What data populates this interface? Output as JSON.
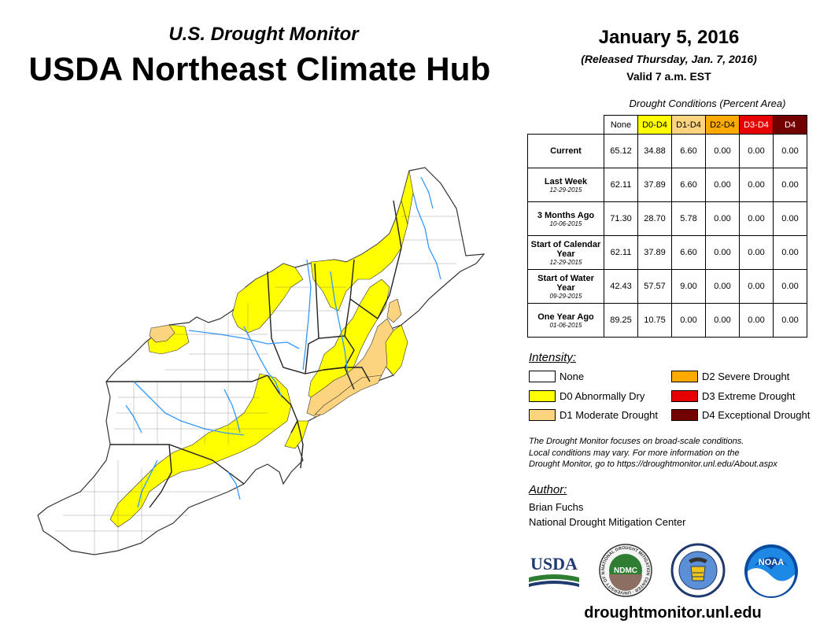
{
  "header": {
    "subtitle": "U.S. Drought Monitor",
    "title": "USDA Northeast Climate Hub"
  },
  "release": {
    "date": "January 5, 2016",
    "released": "(Released Thursday, Jan. 7, 2016)",
    "valid": "Valid 7 a.m. EST"
  },
  "conditions_table": {
    "caption": "Drought Conditions (Percent Area)",
    "columns": [
      "None",
      "D0-D4",
      "D1-D4",
      "D2-D4",
      "D3-D4",
      "D4"
    ],
    "column_colors": [
      "#ffffff",
      "#ffff00",
      "#fcd37f",
      "#ffaa00",
      "#e60000",
      "#730000"
    ],
    "column_text_colors": [
      "#000000",
      "#000000",
      "#000000",
      "#000000",
      "#ffffff",
      "#ffffff"
    ],
    "rows": [
      {
        "label": "Current",
        "date": "",
        "values": [
          "65.12",
          "34.88",
          "6.60",
          "0.00",
          "0.00",
          "0.00"
        ]
      },
      {
        "label": "Last Week",
        "date": "12-29-2015",
        "values": [
          "62.11",
          "37.89",
          "6.60",
          "0.00",
          "0.00",
          "0.00"
        ]
      },
      {
        "label": "3 Months Ago",
        "date": "10-06-2015",
        "values": [
          "71.30",
          "28.70",
          "5.78",
          "0.00",
          "0.00",
          "0.00"
        ]
      },
      {
        "label": "Start of Calendar Year",
        "date": "12-29-2015",
        "values": [
          "62.11",
          "37.89",
          "6.60",
          "0.00",
          "0.00",
          "0.00"
        ]
      },
      {
        "label": "Start of Water Year",
        "date": "09-29-2015",
        "values": [
          "42.43",
          "57.57",
          "9.00",
          "0.00",
          "0.00",
          "0.00"
        ]
      },
      {
        "label": "One Year Ago",
        "date": "01-06-2015",
        "values": [
          "89.25",
          "10.75",
          "0.00",
          "0.00",
          "0.00",
          "0.00"
        ]
      }
    ]
  },
  "legend": {
    "heading": "Intensity:",
    "items": [
      {
        "label": "None",
        "color": "#ffffff"
      },
      {
        "label": "D0 Abnormally Dry",
        "color": "#ffff00"
      },
      {
        "label": "D1 Moderate Drought",
        "color": "#fcd37f"
      },
      {
        "label": "D2 Severe Drought",
        "color": "#ffaa00"
      },
      {
        "label": "D3 Extreme Drought",
        "color": "#e60000"
      },
      {
        "label": "D4 Exceptional Drought",
        "color": "#730000"
      }
    ]
  },
  "note": {
    "line1": "The Drought Monitor focuses on broad-scale conditions.",
    "line2": "Local conditions may vary. For more information on the",
    "line3": "Drought Monitor, go to https://droughtmonitor.unl.edu/About.aspx"
  },
  "author": {
    "heading": "Author:",
    "name": "Brian Fuchs",
    "org": "National Drought Mitigation Center"
  },
  "logos": {
    "usda": "USDA",
    "ndmc": "NDMC",
    "ndmc_ring": "NATIONAL DROUGHT MITIGATION CENTER · UNIVERSITY OF NEBRASKA ·",
    "noaa": "NOAA"
  },
  "footer": {
    "url": "droughtmonitor.unl.edu"
  },
  "map_colors": {
    "none": "#ffffff",
    "d0": "#ffff00",
    "d1": "#fcd37f",
    "water": "#3399ff",
    "border": "#333333"
  }
}
